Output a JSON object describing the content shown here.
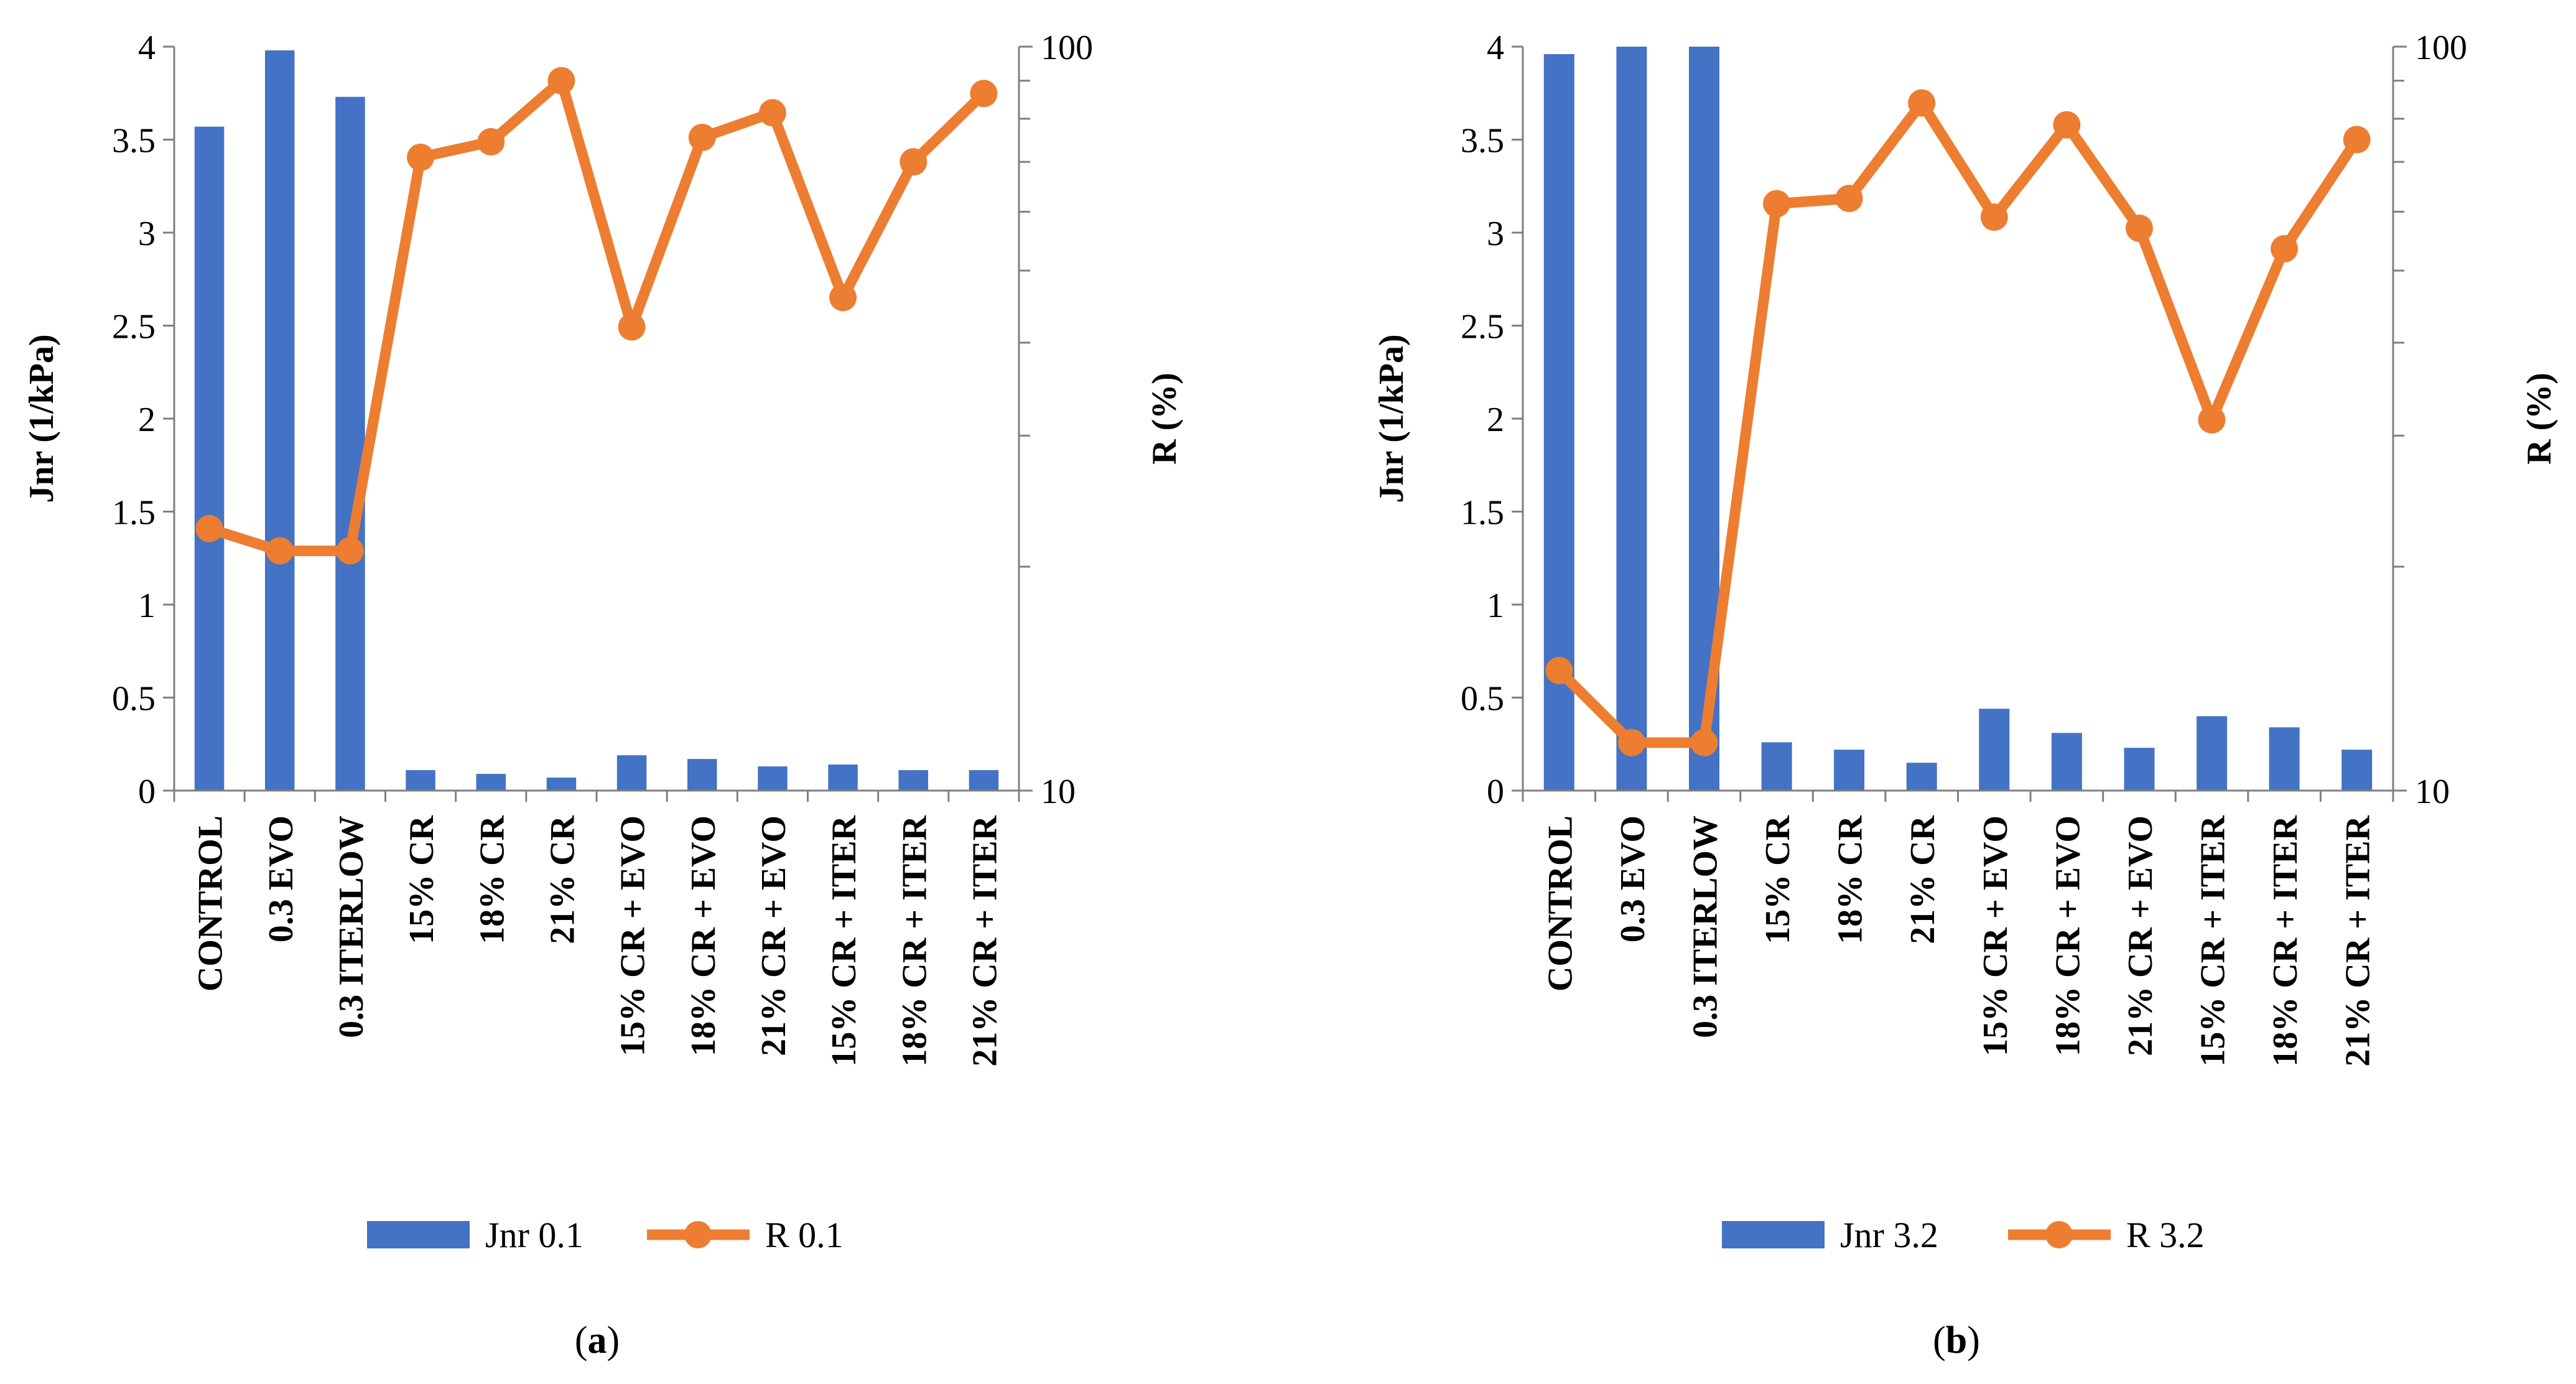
{
  "chart_data": [
    {
      "type": "bar",
      "categories": [
        "CONTROL",
        "0.3 EVO",
        "0.3 ITERLOW",
        "15% CR",
        "18% CR",
        "21% CR",
        "15% CR + EVO",
        "18% CR + EVO",
        "21% CR + EVO",
        "15% CR + ITER",
        "18% CR + ITER",
        "21% CR + ITER"
      ],
      "series": [
        {
          "name": "Jnr 0.1",
          "type": "bar",
          "axis": "left",
          "color": "#4472C4",
          "values": [
            3.57,
            3.98,
            3.73,
            0.11,
            0.09,
            0.07,
            0.19,
            0.17,
            0.13,
            0.14,
            0.11,
            0.11
          ]
        },
        {
          "name": "R 0.1",
          "type": "line",
          "axis": "right",
          "color": "#ED7D31",
          "values": [
            22.5,
            21.0,
            21.0,
            71.0,
            74.5,
            90.0,
            42.0,
            75.5,
            81.5,
            46.0,
            70.0,
            86.5
          ]
        }
      ],
      "ylabel": "Jnr (1/kPa)",
      "ylim": [
        0,
        4
      ],
      "yticks": [
        "0",
        "0.5",
        "1",
        "1.5",
        "2",
        "2.5",
        "3",
        "3.5",
        "4"
      ],
      "y2label": "R (%)",
      "y2lim": [
        10,
        100
      ],
      "y2scale": "log",
      "y2ticks": [
        "10",
        "100"
      ],
      "grid": false,
      "legend": "bottom",
      "caption_letter": "a"
    },
    {
      "type": "bar",
      "categories": [
        "CONTROL",
        "0.3 EVO",
        "0.3 ITERLOW",
        "15% CR",
        "18% CR",
        "21% CR",
        "15% CR + EVO",
        "18% CR + EVO",
        "21% CR + EVO",
        "15% CR + ITER",
        "18% CR + ITER",
        "21% CR + ITER"
      ],
      "series": [
        {
          "name": "Jnr 3.2",
          "type": "bar",
          "axis": "left",
          "color": "#4472C4",
          "values": [
            3.96,
            4.0,
            4.0,
            0.26,
            0.22,
            0.15,
            0.44,
            0.31,
            0.23,
            0.4,
            0.34,
            0.22
          ]
        },
        {
          "name": "R 3.2",
          "type": "line",
          "axis": "right",
          "color": "#ED7D31",
          "values": [
            14.5,
            11.6,
            11.6,
            61.5,
            62.5,
            84.0,
            59.0,
            78.5,
            57.0,
            31.5,
            53.5,
            75.0
          ]
        }
      ],
      "ylabel": "Jnr (1/kPa)",
      "ylim": [
        0,
        4
      ],
      "yticks": [
        "0",
        "0.5",
        "1",
        "1.5",
        "2",
        "2.5",
        "3",
        "3.5",
        "4"
      ],
      "y2label": "R (%)",
      "y2lim": [
        10,
        100
      ],
      "y2scale": "log",
      "y2ticks": [
        "10",
        "100"
      ],
      "grid": false,
      "legend": "bottom",
      "caption_letter": "b"
    }
  ]
}
